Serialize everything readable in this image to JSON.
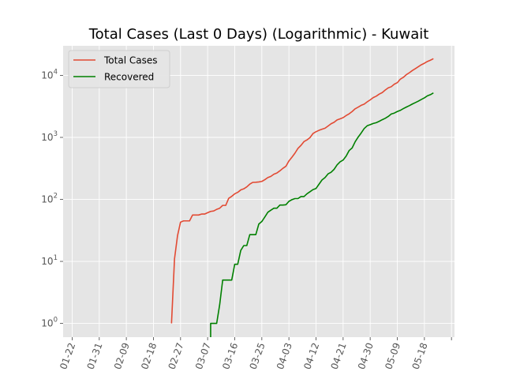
{
  "chart_data": {
    "type": "line",
    "title": "Total Cases (Last 0 Days) (Logarithmic) - Kuwait",
    "xlabel": "",
    "ylabel": "",
    "yscale": "log",
    "ylim": [
      0.6,
      30000
    ],
    "xlim": [
      "2020-01-19",
      "2020-05-28"
    ],
    "grid": true,
    "legend_position": "top-left",
    "x_tick_labels": [
      "01-22",
      "01-31",
      "02-09",
      "02-18",
      "02-27",
      "03-07",
      "03-16",
      "03-25",
      "04-03",
      "04-12",
      "04-21",
      "04-30",
      "05-09",
      "05-18"
    ],
    "x_ticks": [
      "2020-01-22",
      "2020-01-31",
      "2020-02-09",
      "2020-02-18",
      "2020-02-27",
      "2020-03-07",
      "2020-03-16",
      "2020-03-25",
      "2020-04-03",
      "2020-04-12",
      "2020-04-21",
      "2020-04-30",
      "2020-05-09",
      "2020-05-18",
      "2020-05-27"
    ],
    "y_ticks": [
      1,
      10,
      100,
      1000,
      10000
    ],
    "y_tick_labels": [
      {
        "base": "10",
        "exp": "0"
      },
      {
        "base": "10",
        "exp": "1"
      },
      {
        "base": "10",
        "exp": "2"
      },
      {
        "base": "10",
        "exp": "3"
      },
      {
        "base": "10",
        "exp": "4"
      }
    ],
    "series": [
      {
        "name": "Total Cases",
        "color": "#E24A33",
        "points": [
          [
            "2020-02-24",
            1
          ],
          [
            "2020-02-25",
            11
          ],
          [
            "2020-02-26",
            26
          ],
          [
            "2020-02-27",
            43
          ],
          [
            "2020-02-28",
            45
          ],
          [
            "2020-02-29",
            45
          ],
          [
            "2020-03-01",
            45
          ],
          [
            "2020-03-02",
            56
          ],
          [
            "2020-03-03",
            56
          ],
          [
            "2020-03-04",
            56
          ],
          [
            "2020-03-05",
            58
          ],
          [
            "2020-03-06",
            58
          ],
          [
            "2020-03-07",
            61
          ],
          [
            "2020-03-08",
            64
          ],
          [
            "2020-03-09",
            65
          ],
          [
            "2020-03-10",
            69
          ],
          [
            "2020-03-11",
            72
          ],
          [
            "2020-03-12",
            80
          ],
          [
            "2020-03-13",
            80
          ],
          [
            "2020-03-14",
            104
          ],
          [
            "2020-03-15",
            112
          ],
          [
            "2020-03-16",
            123
          ],
          [
            "2020-03-17",
            130
          ],
          [
            "2020-03-18",
            142
          ],
          [
            "2020-03-19",
            148
          ],
          [
            "2020-03-20",
            159
          ],
          [
            "2020-03-21",
            176
          ],
          [
            "2020-03-22",
            188
          ],
          [
            "2020-03-23",
            189
          ],
          [
            "2020-03-24",
            191
          ],
          [
            "2020-03-25",
            195
          ],
          [
            "2020-03-26",
            208
          ],
          [
            "2020-03-27",
            225
          ],
          [
            "2020-03-28",
            235
          ],
          [
            "2020-03-29",
            255
          ],
          [
            "2020-03-30",
            266
          ],
          [
            "2020-03-31",
            289
          ],
          [
            "2020-04-01",
            317
          ],
          [
            "2020-04-02",
            342
          ],
          [
            "2020-04-03",
            417
          ],
          [
            "2020-04-04",
            479
          ],
          [
            "2020-04-05",
            556
          ],
          [
            "2020-04-06",
            665
          ],
          [
            "2020-04-07",
            743
          ],
          [
            "2020-04-08",
            855
          ],
          [
            "2020-04-09",
            910
          ],
          [
            "2020-04-10",
            993
          ],
          [
            "2020-04-11",
            1154
          ],
          [
            "2020-04-12",
            1234
          ],
          [
            "2020-04-13",
            1300
          ],
          [
            "2020-04-14",
            1355
          ],
          [
            "2020-04-15",
            1405
          ],
          [
            "2020-04-16",
            1524
          ],
          [
            "2020-04-17",
            1658
          ],
          [
            "2020-04-18",
            1751
          ],
          [
            "2020-04-19",
            1915
          ],
          [
            "2020-04-20",
            1995
          ],
          [
            "2020-04-21",
            2080
          ],
          [
            "2020-04-22",
            2248
          ],
          [
            "2020-04-23",
            2399
          ],
          [
            "2020-04-24",
            2614
          ],
          [
            "2020-04-25",
            2892
          ],
          [
            "2020-04-26",
            3075
          ],
          [
            "2020-04-27",
            3288
          ],
          [
            "2020-04-28",
            3440
          ],
          [
            "2020-04-29",
            3740
          ],
          [
            "2020-04-30",
            4024
          ],
          [
            "2020-05-01",
            4377
          ],
          [
            "2020-05-02",
            4619
          ],
          [
            "2020-05-03",
            4983
          ],
          [
            "2020-05-04",
            5278
          ],
          [
            "2020-05-05",
            5804
          ],
          [
            "2020-05-06",
            6289
          ],
          [
            "2020-05-07",
            6567
          ],
          [
            "2020-05-08",
            7208
          ],
          [
            "2020-05-09",
            7623
          ],
          [
            "2020-05-10",
            8688
          ],
          [
            "2020-05-11",
            9286
          ],
          [
            "2020-05-12",
            10277
          ],
          [
            "2020-05-13",
            11028
          ],
          [
            "2020-05-14",
            11975
          ],
          [
            "2020-05-15",
            12860
          ],
          [
            "2020-05-16",
            13802
          ],
          [
            "2020-05-17",
            14850
          ],
          [
            "2020-05-18",
            15691
          ],
          [
            "2020-05-19",
            16764
          ],
          [
            "2020-05-20",
            17568
          ],
          [
            "2020-05-21",
            18609
          ]
        ]
      },
      {
        "name": "Recovered",
        "color": "#008000",
        "points": [
          [
            "2020-03-08",
            0.5
          ],
          [
            "2020-03-08",
            1
          ],
          [
            "2020-03-09",
            1
          ],
          [
            "2020-03-10",
            1
          ],
          [
            "2020-03-11",
            2
          ],
          [
            "2020-03-12",
            5
          ],
          [
            "2020-03-13",
            5
          ],
          [
            "2020-03-14",
            5
          ],
          [
            "2020-03-15",
            5
          ],
          [
            "2020-03-16",
            9
          ],
          [
            "2020-03-17",
            9
          ],
          [
            "2020-03-18",
            15
          ],
          [
            "2020-03-19",
            18
          ],
          [
            "2020-03-20",
            18
          ],
          [
            "2020-03-21",
            27
          ],
          [
            "2020-03-22",
            27
          ],
          [
            "2020-03-23",
            27
          ],
          [
            "2020-03-24",
            40
          ],
          [
            "2020-03-25",
            44
          ],
          [
            "2020-03-26",
            52
          ],
          [
            "2020-03-27",
            62
          ],
          [
            "2020-03-28",
            67
          ],
          [
            "2020-03-29",
            72
          ],
          [
            "2020-03-30",
            72
          ],
          [
            "2020-03-31",
            81
          ],
          [
            "2020-04-01",
            81
          ],
          [
            "2020-04-02",
            82
          ],
          [
            "2020-04-03",
            93
          ],
          [
            "2020-04-04",
            99
          ],
          [
            "2020-04-05",
            103
          ],
          [
            "2020-04-06",
            103
          ],
          [
            "2020-04-07",
            111
          ],
          [
            "2020-04-08",
            111
          ],
          [
            "2020-04-09",
            123
          ],
          [
            "2020-04-10",
            133
          ],
          [
            "2020-04-11",
            144
          ],
          [
            "2020-04-12",
            150
          ],
          [
            "2020-04-13",
            176
          ],
          [
            "2020-04-14",
            206
          ],
          [
            "2020-04-15",
            225
          ],
          [
            "2020-04-16",
            258
          ],
          [
            "2020-04-17",
            274
          ],
          [
            "2020-04-18",
            305
          ],
          [
            "2020-04-19",
            360
          ],
          [
            "2020-04-20",
            404
          ],
          [
            "2020-04-21",
            431
          ],
          [
            "2020-04-22",
            498
          ],
          [
            "2020-04-23",
            613
          ],
          [
            "2020-04-24",
            675
          ],
          [
            "2020-04-25",
            849
          ],
          [
            "2020-04-26",
            1012
          ],
          [
            "2020-04-27",
            1176
          ],
          [
            "2020-04-28",
            1389
          ],
          [
            "2020-04-29",
            1539
          ],
          [
            "2020-04-30",
            1602
          ],
          [
            "2020-05-01",
            1676
          ],
          [
            "2020-05-02",
            1728
          ],
          [
            "2020-05-03",
            1817
          ],
          [
            "2020-05-04",
            1929
          ],
          [
            "2020-05-05",
            2032
          ],
          [
            "2020-05-06",
            2177
          ],
          [
            "2020-05-07",
            2386
          ],
          [
            "2020-05-08",
            2466
          ],
          [
            "2020-05-09",
            2614
          ],
          [
            "2020-05-10",
            2729
          ],
          [
            "2020-05-11",
            2907
          ],
          [
            "2020-05-12",
            3081
          ],
          [
            "2020-05-13",
            3250
          ],
          [
            "2020-05-14",
            3451
          ],
          [
            "2020-05-15",
            3640
          ],
          [
            "2020-05-16",
            3843
          ],
          [
            "2020-05-17",
            4093
          ],
          [
            "2020-05-18",
            4339
          ],
          [
            "2020-05-19",
            4681
          ],
          [
            "2020-05-20",
            4887
          ],
          [
            "2020-05-21",
            5205
          ]
        ]
      }
    ]
  }
}
